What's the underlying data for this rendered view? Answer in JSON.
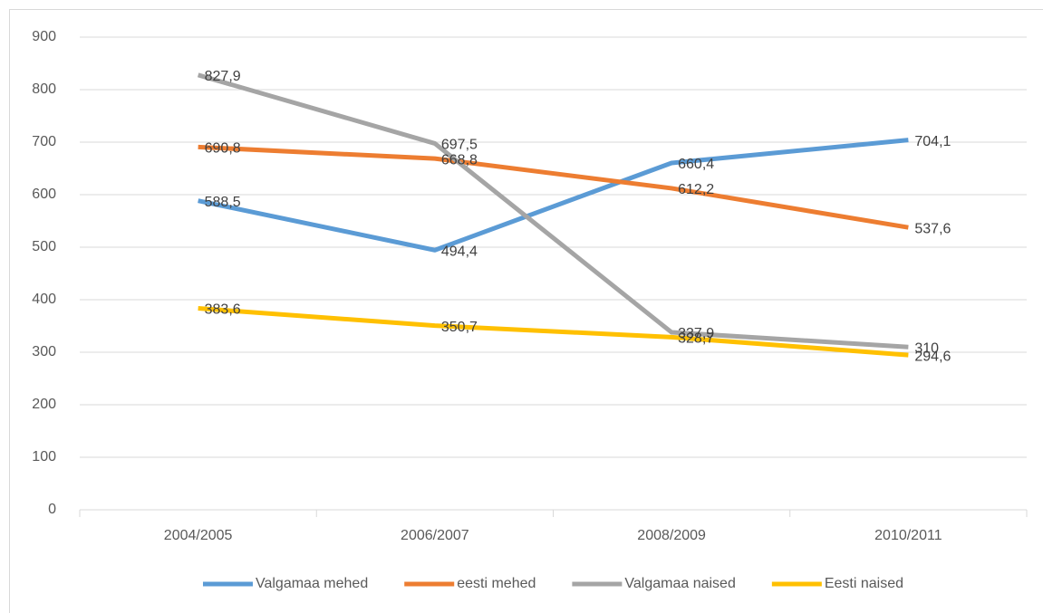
{
  "chart_data": {
    "type": "line",
    "categories": [
      "2004/2005",
      "2006/2007",
      "2008/2009",
      "2010/2011"
    ],
    "series": [
      {
        "name": "Valgamaa mehed",
        "color": "#5b9bd5",
        "values": [
          588.5,
          494.4,
          660.4,
          704.1
        ],
        "value_labels": [
          "588,5",
          "494,4",
          "660,4",
          "704,1"
        ]
      },
      {
        "name": "eesti mehed",
        "color": "#ed7d31",
        "values": [
          690.8,
          668.8,
          612.2,
          537.6
        ],
        "value_labels": [
          "690,8",
          "668,8",
          "612,2",
          "537,6"
        ]
      },
      {
        "name": "Valgamaa naised",
        "color": "#a5a5a5",
        "values": [
          827.9,
          697.5,
          337.9,
          310
        ],
        "value_labels": [
          "827,9",
          "697,5",
          "337,9",
          "310"
        ]
      },
      {
        "name": "Eesti naised",
        "color": "#ffc000",
        "values": [
          383.6,
          350.7,
          328.7,
          294.6
        ],
        "value_labels": [
          "383,6",
          "350,7",
          "328,7",
          "294,6"
        ]
      }
    ],
    "ylim": [
      0,
      900
    ],
    "yticks": [
      0,
      100,
      200,
      300,
      400,
      500,
      600,
      700,
      800,
      900
    ],
    "grid": true,
    "legend": "bottom"
  }
}
